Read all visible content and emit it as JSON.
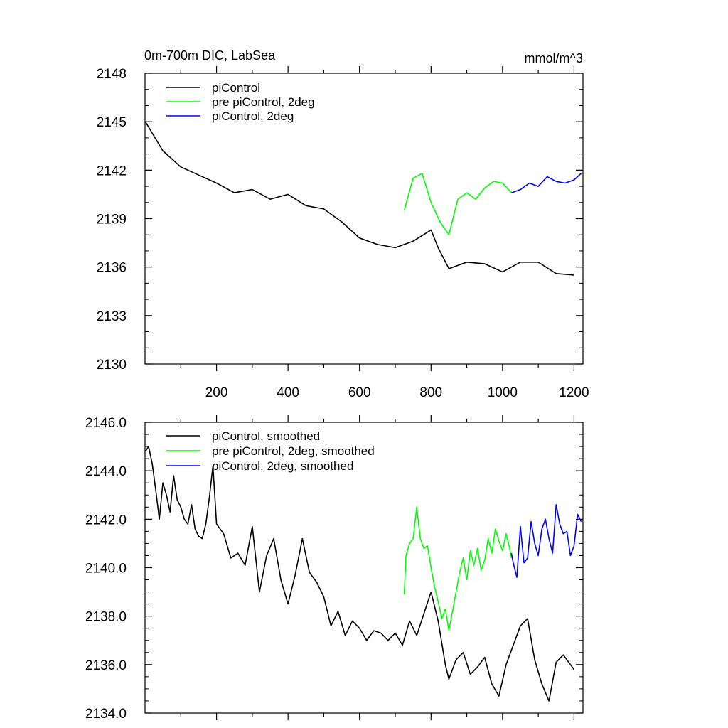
{
  "chart_data": [
    {
      "type": "line",
      "title": "0m-700m DIC, LabSea",
      "units_label": "mmol/m^3",
      "xlim": [
        0,
        1225
      ],
      "ylim": [
        2130,
        2148
      ],
      "yticks": [
        "2130",
        "2133",
        "2136",
        "2139",
        "2142",
        "2145",
        "2148"
      ],
      "xticks": [
        "200",
        "400",
        "600",
        "800",
        "1000",
        "1200"
      ],
      "legend": [
        "piControl",
        "pre piControl, 2deg",
        "piControl, 2deg"
      ],
      "series": [
        {
          "name": "piControl",
          "color": "#000000",
          "x": [
            1,
            50,
            100,
            150,
            200,
            250,
            300,
            350,
            400,
            450,
            500,
            550,
            600,
            650,
            700,
            750,
            800,
            820,
            850,
            900,
            950,
            1000,
            1050,
            1100,
            1150,
            1200
          ],
          "y": [
            2145.0,
            2143.2,
            2142.2,
            2141.7,
            2141.2,
            2140.6,
            2140.8,
            2140.2,
            2140.5,
            2139.8,
            2139.6,
            2138.8,
            2137.8,
            2137.4,
            2137.2,
            2137.6,
            2138.3,
            2137.2,
            2135.9,
            2136.3,
            2136.2,
            2135.7,
            2136.3,
            2136.3,
            2135.6,
            2135.5
          ]
        },
        {
          "name": "pre piControl, 2deg",
          "color": "#00ff00",
          "x": [
            725,
            750,
            775,
            800,
            825,
            850,
            875,
            900,
            925,
            950,
            975,
            1000,
            1025
          ],
          "y": [
            2139.5,
            2141.5,
            2141.8,
            2140.0,
            2138.8,
            2138.0,
            2140.2,
            2140.6,
            2140.2,
            2140.9,
            2141.3,
            2141.2,
            2140.6
          ]
        },
        {
          "name": "piControl, 2deg",
          "color": "#0000ff",
          "x": [
            1025,
            1050,
            1075,
            1100,
            1125,
            1150,
            1175,
            1200,
            1220
          ],
          "y": [
            2140.6,
            2140.8,
            2141.2,
            2141.0,
            2141.6,
            2141.3,
            2141.2,
            2141.4,
            2141.8
          ]
        }
      ]
    },
    {
      "type": "line",
      "title": "",
      "xlim": [
        0,
        1225
      ],
      "ylim": [
        2134,
        2146
      ],
      "yticks": [
        "2134.0",
        "2136.0",
        "2138.0",
        "2140.0",
        "2142.0",
        "2144.0",
        "2146.0"
      ],
      "legend": [
        "piControl, smoothed",
        "pre piControl, 2deg, smoothed",
        "piControl, 2deg, smoothed"
      ],
      "series": [
        {
          "name": "piControl, smoothed",
          "color": "#000000",
          "x": [
            1,
            10,
            20,
            30,
            40,
            50,
            60,
            70,
            80,
            90,
            100,
            110,
            120,
            130,
            140,
            150,
            160,
            170,
            180,
            190,
            200,
            220,
            240,
            260,
            280,
            300,
            320,
            340,
            360,
            380,
            400,
            420,
            440,
            460,
            480,
            500,
            520,
            540,
            560,
            580,
            600,
            620,
            640,
            660,
            680,
            700,
            720,
            740,
            760,
            780,
            800,
            810,
            820,
            830,
            840,
            850,
            870,
            890,
            910,
            930,
            950,
            970,
            990,
            1010,
            1030,
            1050,
            1070,
            1090,
            1110,
            1130,
            1150,
            1170,
            1190,
            1200
          ],
          "y": [
            2144.8,
            2145.0,
            2144.3,
            2143.2,
            2142.0,
            2143.5,
            2143.0,
            2142.3,
            2143.8,
            2142.8,
            2142.5,
            2142.0,
            2141.8,
            2142.6,
            2141.6,
            2141.3,
            2141.2,
            2141.8,
            2142.9,
            2144.2,
            2141.8,
            2141.4,
            2140.4,
            2140.6,
            2140.1,
            2141.7,
            2139.0,
            2140.5,
            2141.2,
            2139.5,
            2138.5,
            2139.7,
            2141.2,
            2139.8,
            2139.4,
            2138.8,
            2137.6,
            2138.2,
            2137.2,
            2137.8,
            2137.5,
            2137.0,
            2137.4,
            2137.3,
            2137.0,
            2137.3,
            2136.8,
            2137.8,
            2137.2,
            2138.1,
            2139.0,
            2138.4,
            2137.8,
            2136.9,
            2136.0,
            2135.4,
            2136.2,
            2136.5,
            2135.6,
            2135.9,
            2136.3,
            2135.2,
            2134.7,
            2136.0,
            2136.8,
            2137.6,
            2137.9,
            2136.2,
            2135.2,
            2134.5,
            2136.1,
            2136.4,
            2136.0,
            2135.8
          ]
        },
        {
          "name": "pre piControl, 2deg, smoothed",
          "color": "#00ff00",
          "x": [
            725,
            730,
            740,
            750,
            760,
            770,
            780,
            790,
            800,
            810,
            820,
            830,
            840,
            850,
            860,
            870,
            880,
            890,
            900,
            910,
            920,
            930,
            940,
            950,
            960,
            970,
            980,
            990,
            1000,
            1010,
            1020,
            1025
          ],
          "y": [
            2138.9,
            2140.5,
            2141.0,
            2141.2,
            2142.5,
            2141.2,
            2140.8,
            2140.9,
            2140.0,
            2139.2,
            2138.6,
            2137.9,
            2138.3,
            2137.4,
            2138.2,
            2139.0,
            2139.8,
            2140.4,
            2139.5,
            2140.7,
            2140.1,
            2140.8,
            2139.9,
            2140.3,
            2141.2,
            2140.6,
            2141.6,
            2141.1,
            2140.7,
            2141.4,
            2140.8,
            2140.4
          ]
        },
        {
          "name": "piControl, 2deg, smoothed",
          "color": "#0000ff",
          "x": [
            1025,
            1030,
            1040,
            1050,
            1060,
            1070,
            1080,
            1090,
            1100,
            1110,
            1120,
            1130,
            1140,
            1150,
            1160,
            1170,
            1180,
            1190,
            1200,
            1210,
            1220
          ],
          "y": [
            2140.6,
            2140.2,
            2139.6,
            2141.7,
            2140.2,
            2140.4,
            2141.9,
            2141.0,
            2140.5,
            2141.6,
            2142.0,
            2141.2,
            2140.6,
            2142.6,
            2141.8,
            2141.4,
            2141.5,
            2140.5,
            2140.9,
            2142.2,
            2141.9
          ]
        }
      ]
    }
  ]
}
